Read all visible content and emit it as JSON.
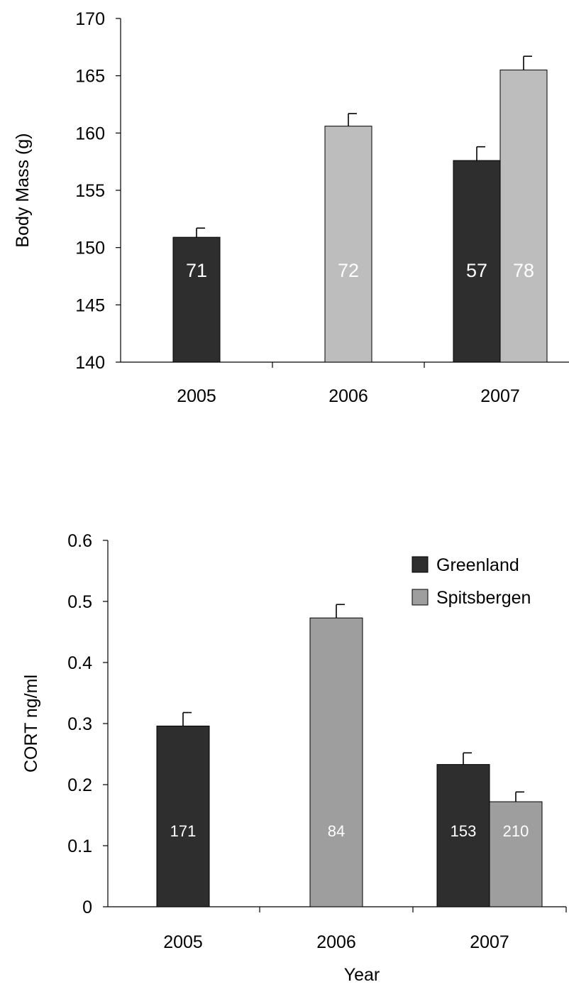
{
  "chart_data": [
    {
      "type": "bar",
      "categories": [
        "2005",
        "2006",
        "2007"
      ],
      "ylabel": "Body Mass (g)",
      "xlabel": "",
      "ylim": [
        140,
        170
      ],
      "yticks": [
        "140",
        "145",
        "150",
        "155",
        "160",
        "165",
        "170"
      ],
      "grid": false,
      "series": [
        {
          "color": "#2e2e2e",
          "values": [
            150.9,
            null,
            157.6
          ],
          "errors": [
            0.8,
            null,
            1.2
          ],
          "bar_labels": [
            "71",
            "",
            "57"
          ]
        },
        {
          "color": "#bdbdbd",
          "values": [
            null,
            160.6,
            165.5
          ],
          "errors": [
            null,
            1.1,
            1.2
          ],
          "bar_labels": [
            "",
            "72",
            "78"
          ]
        }
      ]
    },
    {
      "type": "bar",
      "categories": [
        "2005",
        "2006",
        "2007"
      ],
      "ylabel": "CORT ng/ml",
      "xlabel": "Year",
      "ylim": [
        0,
        0.6
      ],
      "yticks": [
        "0",
        "0.1",
        "0.2",
        "0.3",
        "0.4",
        "0.5",
        "0.6"
      ],
      "grid": false,
      "legend_position": "top-right",
      "series": [
        {
          "name": "Greenland",
          "color": "#2e2e2e",
          "values": [
            0.296,
            null,
            0.233
          ],
          "errors": [
            0.022,
            null,
            0.019
          ],
          "bar_labels": [
            "171",
            "",
            "153"
          ]
        },
        {
          "name": "Spitsbergen",
          "color": "#9e9e9e",
          "values": [
            null,
            0.473,
            0.172
          ],
          "errors": [
            null,
            0.022,
            0.016
          ],
          "bar_labels": [
            "",
            "84",
            "210"
          ]
        }
      ]
    }
  ]
}
